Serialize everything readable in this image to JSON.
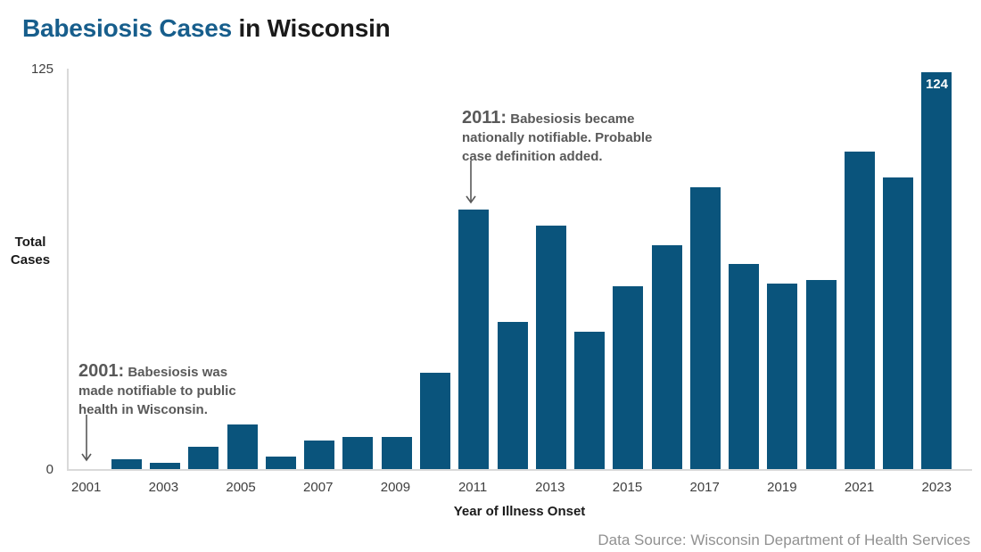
{
  "title": {
    "highlight": "Babesiosis Cases",
    "rest": " in Wisconsin"
  },
  "y_axis": {
    "max_tick": "125",
    "min_tick": "0",
    "label_line1": "Total",
    "label_line2": "Cases"
  },
  "x_axis": {
    "title": "Year of Illness Onset"
  },
  "footer": {
    "source": "Data Source: Wisconsin Department of Health Services"
  },
  "colors": {
    "bar": "#0a547c",
    "title_accent": "#175e8c",
    "annotation_text": "#595959",
    "axis_line": "#d9d9d9",
    "tick_text": "#3f3f3f",
    "source_text": "#919191",
    "bar_value_text": "#ffffff"
  },
  "chart_data": {
    "type": "bar",
    "title": "Babesiosis Cases in Wisconsin",
    "xlabel": "Year of Illness Onset",
    "ylabel": "Total Cases",
    "ylim": [
      0,
      125
    ],
    "grid": false,
    "legend": false,
    "x": [
      2001,
      2002,
      2003,
      2004,
      2005,
      2006,
      2007,
      2008,
      2009,
      2010,
      2011,
      2012,
      2013,
      2014,
      2015,
      2016,
      2017,
      2018,
      2019,
      2020,
      2021,
      2022,
      2023
    ],
    "values": [
      0,
      3,
      2,
      7,
      14,
      4,
      9,
      10,
      10,
      30,
      81,
      46,
      76,
      43,
      57,
      70,
      88,
      64,
      58,
      59,
      99,
      91,
      124
    ],
    "tick_years": [
      2001,
      2003,
      2005,
      2007,
      2009,
      2011,
      2013,
      2015,
      2017,
      2019,
      2021,
      2023
    ],
    "bar_label": {
      "year": 2023,
      "text": "124"
    },
    "annotations": [
      {
        "year_prefix": "2001:",
        "text": " Babesiosis was made notifiable to public health in Wisconsin.",
        "arrow_target": "x-axis at 2001"
      },
      {
        "year_prefix": "2011:",
        "text": " Babesiosis became nationally notifiable. Probable case definition added.",
        "arrow_target": "top of 2011 bar"
      }
    ]
  }
}
